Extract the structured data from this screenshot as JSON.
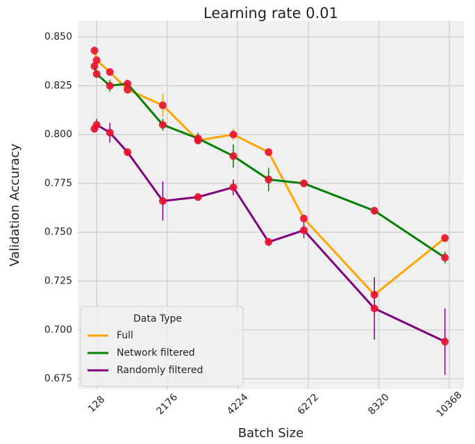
{
  "chart_data": {
    "type": "line",
    "title": "Learning rate 0.01",
    "x_label": "Batch Size",
    "y_label": "Validation Accuracy",
    "x": [
      64,
      128,
      512,
      1024,
      2048,
      3072,
      4096,
      5120,
      6144,
      8192,
      10240
    ],
    "series": [
      {
        "name": "Full",
        "color": "#ffa500",
        "values": [
          0.843,
          0.838,
          0.832,
          0.823,
          0.815,
          0.797,
          0.8,
          0.791,
          0.757,
          0.718,
          0.747
        ],
        "errors": [
          0.002,
          0.002,
          0.002,
          0.002,
          0.006,
          0.002,
          0.003,
          0.002,
          0.002,
          0.008,
          0.002
        ]
      },
      {
        "name": "Network filtered",
        "color": "#008000",
        "values": [
          0.835,
          0.831,
          0.825,
          0.826,
          0.805,
          0.798,
          0.789,
          0.777,
          0.775,
          0.761,
          0.737
        ],
        "errors": [
          0.002,
          0.002,
          0.003,
          0.002,
          0.003,
          0.003,
          0.006,
          0.006,
          0.002,
          0.002,
          0.003
        ]
      },
      {
        "name": "Randomly filtered",
        "color": "#800080",
        "values": [
          0.803,
          0.805,
          0.801,
          0.791,
          0.766,
          0.768,
          0.773,
          0.745,
          0.751,
          0.711,
          0.694
        ],
        "errors": [
          0.002,
          0.003,
          0.005,
          0.002,
          0.01,
          0.002,
          0.004,
          0.002,
          0.004,
          0.016,
          0.017
        ]
      }
    ],
    "marker_color": "#e8112d",
    "legend_title": "Data Type",
    "legend": "lower left",
    "grid": true,
    "xlim": [
      -420,
      10790
    ],
    "xticks": [
      128,
      2176,
      4224,
      6272,
      8320,
      10368
    ],
    "ylim": [
      0.6697,
      0.8582
    ],
    "yticks": [
      {
        "value": 0.675,
        "label": "0.675"
      },
      {
        "value": 0.7,
        "label": "0.700"
      },
      {
        "value": 0.725,
        "label": "0.725"
      },
      {
        "value": 0.75,
        "label": "0.750"
      },
      {
        "value": 0.775,
        "label": "0.775"
      },
      {
        "value": 0.8,
        "label": "0.800"
      },
      {
        "value": 0.825,
        "label": "0.825"
      },
      {
        "value": 0.85,
        "label": "0.850"
      }
    ]
  }
}
